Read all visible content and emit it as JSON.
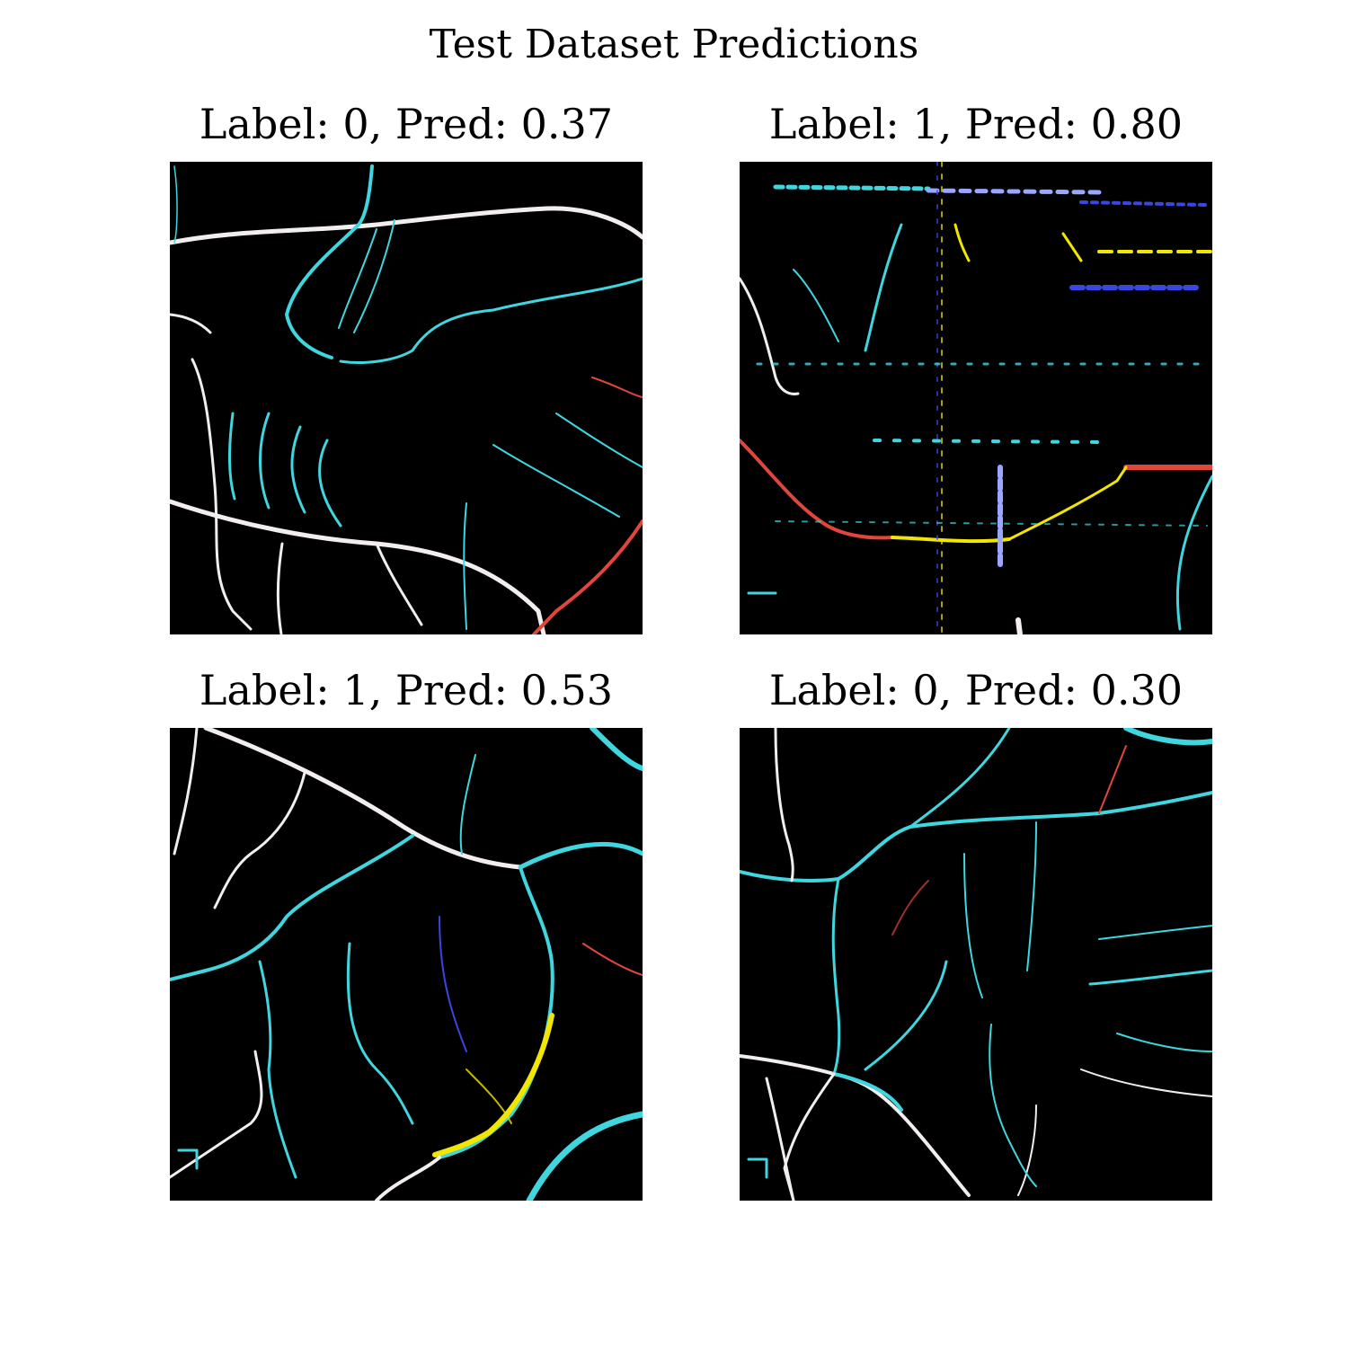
{
  "figure": {
    "title": "Test Dataset Predictions",
    "panels": [
      {
        "title": "Label: 0, Pred: 0.37",
        "label": 0,
        "pred": 0.37,
        "image": "retinal-vessel-angiogram-image"
      },
      {
        "title": "Label: 1, Pred: 0.80",
        "label": 1,
        "pred": 0.8,
        "image": "retinal-vessel-angiogram-image"
      },
      {
        "title": "Label: 1, Pred: 0.53",
        "label": 1,
        "pred": 0.53,
        "image": "retinal-vessel-angiogram-image"
      },
      {
        "title": "Label: 0, Pred: 0.30",
        "label": 0,
        "pred": 0.3,
        "image": "retinal-vessel-angiogram-image"
      }
    ]
  },
  "colors": {
    "background": "#ffffff",
    "image_background": "#000000",
    "vessel_cyan": "#3fd6df",
    "vessel_white": "#f2eeee",
    "vessel_red": "#e0463a",
    "vessel_yellow": "#f2e600",
    "vessel_blue": "#3a46e0"
  }
}
